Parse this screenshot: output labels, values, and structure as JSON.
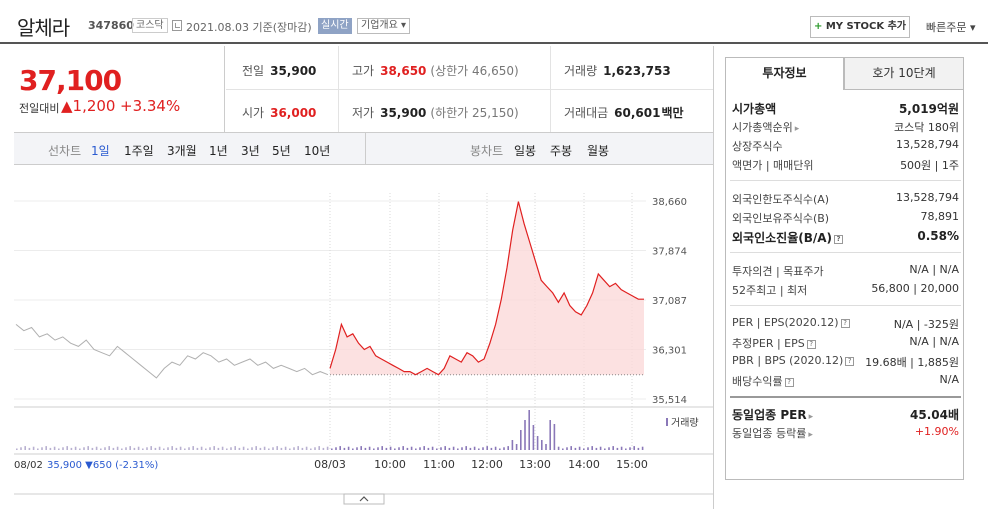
{
  "header": {
    "name": "알체라",
    "code": "347860",
    "market": "코스닥",
    "date_text": "2021.08.03 기준(장마감)",
    "live_label": "실시간",
    "company_btn": "기업개요 ▾",
    "mystock_btn": "MY STOCK 추가",
    "quick_order": "빠른주문 ▾"
  },
  "price": {
    "current": "37,100",
    "change_label": "전일대비",
    "change_amount": "▲1,200",
    "change_rate": "+3.34%"
  },
  "stats": {
    "prev_label": "전일",
    "prev": "35,900",
    "high_label": "고가",
    "high": "38,650",
    "upper_limit": "(상한가 46,650)",
    "volume_label": "거래량",
    "volume": "1,623,753",
    "open_label": "시가",
    "open": "36,000",
    "low_label": "저가",
    "low": "35,900",
    "lower_limit": "(하한가 25,150)",
    "amount_label": "거래대금",
    "amount": "60,601",
    "amount_unit": "백만"
  },
  "toolbar": {
    "line_label": "선차트",
    "line_periods": [
      "1일",
      "1주일",
      "3개월",
      "1년",
      "3년",
      "5년",
      "10년"
    ],
    "candle_label": "봉차트",
    "candle_periods": [
      "일봉",
      "주봉",
      "월봉"
    ]
  },
  "chart_data": {
    "type": "line",
    "y_ticks": [
      "38,660",
      "37,874",
      "37,087",
      "36,301",
      "35,514"
    ],
    "ylim": [
      35514,
      38660
    ],
    "x_ticks": [
      "08/03",
      "10:00",
      "11:00",
      "12:00",
      "13:00",
      "14:00",
      "15:00"
    ],
    "prev_day_label": "08/02",
    "prev_day_info": "35,900 ▼650 (-2.31%)",
    "volume_label": "거래량",
    "prev_close": 35900,
    "prev_series": [
      36700,
      36600,
      36650,
      36500,
      36550,
      36450,
      36500,
      36400,
      36350,
      36450,
      36300,
      36250,
      36200,
      36350,
      36250,
      36150,
      36050,
      35950,
      35850,
      36000,
      36100,
      36050,
      36200,
      36150,
      36250,
      36200,
      36100,
      36150,
      36050,
      36100,
      36150,
      36050,
      36100,
      36000,
      36050,
      36000,
      35950,
      36000,
      35900,
      35950,
      35900
    ],
    "today_series": [
      36000,
      36300,
      36700,
      36500,
      36550,
      36400,
      36300,
      36350,
      36200,
      36150,
      36100,
      36050,
      36000,
      35950,
      35950,
      35900,
      35950,
      36000,
      35950,
      35900,
      36000,
      36200,
      36150,
      36100,
      36250,
      36200,
      36100,
      36150,
      36400,
      36700,
      37100,
      37600,
      38200,
      38650,
      38300,
      38000,
      37700,
      37400,
      37300,
      37200,
      37050,
      37200,
      37000,
      36900,
      36850,
      37000,
      37200,
      37500,
      37400,
      37300,
      37350,
      37250,
      37200,
      37150,
      37100,
      37100
    ]
  },
  "panel": {
    "tab_info": "투자정보",
    "tab_ask": "호가 10단계",
    "rows": {
      "mcap_k": "시가총액",
      "mcap_v": "5,019억원",
      "rank_k": "시가총액순위",
      "rank_v": "코스닥 180위",
      "shares_k": "상장주식수",
      "shares_v": "13,528,794",
      "face_k": "액면가 | 매매단위",
      "face_v": "500원 | 1주",
      "f_limit_k": "외국인한도주식수(A)",
      "f_limit_v": "13,528,794",
      "f_hold_k": "외국인보유주식수(B)",
      "f_hold_v": "78,891",
      "f_ratio_k": "외국인소진율(B/A)",
      "f_ratio_v": "0.58%",
      "opinion_k": "투자의견 | 목표주가",
      "opinion_v": "N/A | N/A",
      "w52_k": "52주최고 | 최저",
      "w52_v": "56,800 | 20,000",
      "per_k": "PER | EPS(2020.12)",
      "per_v": "N/A | -325원",
      "eper_k": "추정PER | EPS",
      "eper_v": "N/A | N/A",
      "pbr_k": "PBR | BPS (2020.12)",
      "pbr_v": "19.68배 | 1,885원",
      "div_k": "배당수익률",
      "div_v": "N/A",
      "sper_k": "동일업종 PER",
      "sper_v": "45.04배",
      "srate_k": "동일업종 등락률",
      "srate_v": "+1.90%"
    }
  },
  "colors": {
    "red": "#e02020",
    "blue": "#2a5ad0",
    "gray_line": "#b0b0b0",
    "fill": "#fbdada",
    "volume": "#8a78b8"
  }
}
